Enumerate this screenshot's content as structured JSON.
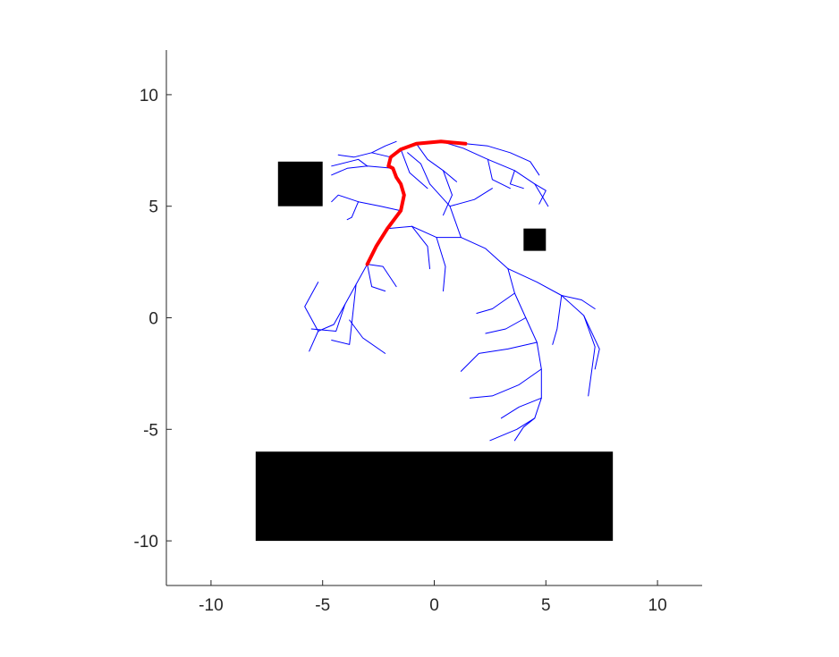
{
  "chart_data": {
    "type": "line",
    "title": "",
    "xlabel": "",
    "ylabel": "",
    "xlim": [
      -12,
      12
    ],
    "ylim": [
      -12,
      12
    ],
    "grid": false,
    "x_ticks": [
      "-10",
      "-5",
      "0",
      "5",
      "10"
    ],
    "y_ticks": [
      "10",
      "5",
      "0",
      "-5",
      "-10"
    ],
    "colors": {
      "tree": "#0000ff",
      "path": "#ff0000",
      "obstacle": "#000000",
      "axis": "#262626"
    },
    "obstacles": [
      {
        "x": [
          -7,
          -5
        ],
        "y": [
          5,
          7
        ]
      },
      {
        "x": [
          4,
          5
        ],
        "y": [
          3,
          4
        ]
      },
      {
        "x": [
          -8,
          8
        ],
        "y": [
          -10,
          -6
        ]
      }
    ],
    "path": {
      "x": [
        -3.0,
        -2.6,
        -2.1,
        -1.5,
        -1.35,
        -1.5,
        -1.7,
        -1.85,
        -2.05,
        -1.95,
        -1.5,
        -0.8,
        0.3,
        1.4
      ],
      "y": [
        2.4,
        3.2,
        4.0,
        4.8,
        5.5,
        6.0,
        6.3,
        6.7,
        6.8,
        7.2,
        7.55,
        7.8,
        7.9,
        7.8
      ]
    },
    "tree_branches": [
      {
        "x": [
          -3.0,
          -2.6,
          -2.1,
          -1.5,
          -1.35,
          -1.5,
          -1.7,
          -1.85,
          -2.05,
          -1.95,
          -1.5,
          -0.8,
          0.3,
          1.4
        ],
        "y": [
          2.4,
          3.2,
          4.0,
          4.8,
          5.5,
          6.0,
          6.3,
          6.7,
          6.8,
          7.2,
          7.55,
          7.8,
          7.9,
          7.8
        ]
      },
      {
        "x": [
          -3.0,
          -3.5,
          -4.0,
          -4.5,
          -5.2,
          -5.6
        ],
        "y": [
          2.4,
          1.5,
          0.6,
          -0.3,
          -0.6,
          -1.5
        ]
      },
      {
        "x": [
          -4.0,
          -4.4,
          -5.5
        ],
        "y": [
          0.6,
          -0.6,
          -0.5
        ]
      },
      {
        "x": [
          -3.5,
          -3.8,
          -4.6
        ],
        "y": [
          1.5,
          -1.2,
          -1.0
        ]
      },
      {
        "x": [
          -3.8,
          -3.2,
          -2.2
        ],
        "y": [
          -0.1,
          -0.9,
          -1.6
        ]
      },
      {
        "x": [
          -3.0,
          -2.8,
          -2.2
        ],
        "y": [
          2.4,
          1.4,
          1.2
        ]
      },
      {
        "x": [
          -5.2,
          -5.8,
          -5.2
        ],
        "y": [
          -0.6,
          0.5,
          1.6
        ]
      },
      {
        "x": [
          -3.0,
          -2.3,
          -1.7
        ],
        "y": [
          2.4,
          2.3,
          1.4
        ]
      },
      {
        "x": [
          -2.1,
          -1.0,
          0.1,
          1.2,
          2.3,
          3.3
        ],
        "y": [
          4.0,
          4.1,
          3.6,
          3.6,
          3.1,
          2.2
        ]
      },
      {
        "x": [
          0.1,
          0.5,
          0.4
        ],
        "y": [
          3.6,
          2.3,
          1.2
        ]
      },
      {
        "x": [
          -1.0,
          -0.3,
          -0.2
        ],
        "y": [
          4.1,
          3.2,
          2.2
        ]
      },
      {
        "x": [
          3.3,
          3.6,
          4.1,
          4.6,
          4.8,
          4.8,
          4.5,
          3.7,
          2.5
        ],
        "y": [
          2.2,
          1.1,
          0.0,
          -1.1,
          -2.3,
          -3.6,
          -4.5,
          -5.0,
          -5.5
        ]
      },
      {
        "x": [
          3.6,
          2.6,
          1.9
        ],
        "y": [
          1.1,
          0.4,
          0.2
        ]
      },
      {
        "x": [
          4.1,
          3.2,
          2.3
        ],
        "y": [
          0.0,
          -0.5,
          -0.7
        ]
      },
      {
        "x": [
          4.6,
          3.3,
          2.0,
          1.2
        ],
        "y": [
          -1.1,
          -1.4,
          -1.6,
          -2.4
        ]
      },
      {
        "x": [
          4.8,
          3.8,
          2.6,
          1.6
        ],
        "y": [
          -2.3,
          -3.0,
          -3.5,
          -3.6
        ]
      },
      {
        "x": [
          4.8,
          3.8,
          3.0
        ],
        "y": [
          -3.6,
          -4.0,
          -4.5
        ]
      },
      {
        "x": [
          4.5,
          4.0,
          3.6
        ],
        "y": [
          -4.5,
          -4.9,
          -5.5
        ]
      },
      {
        "x": [
          3.3,
          4.6,
          5.7,
          6.7,
          7.2,
          6.9
        ],
        "y": [
          2.2,
          1.6,
          1.0,
          0.1,
          -1.3,
          -3.5
        ]
      },
      {
        "x": [
          5.7,
          5.5,
          5.3
        ],
        "y": [
          1.0,
          -0.5,
          -1.2
        ]
      },
      {
        "x": [
          6.7,
          7.4,
          7.2
        ],
        "y": [
          0.1,
          -1.4,
          -2.3
        ]
      },
      {
        "x": [
          5.7,
          6.6,
          7.2
        ],
        "y": [
          1.0,
          0.8,
          0.4
        ]
      },
      {
        "x": [
          1.2,
          0.7,
          -0.2
        ],
        "y": [
          3.6,
          5.0,
          6.0
        ]
      },
      {
        "x": [
          0.7,
          1.8,
          2.6
        ],
        "y": [
          5.0,
          5.3,
          5.8
        ]
      },
      {
        "x": [
          -0.2,
          -0.6,
          -1.2
        ],
        "y": [
          6.0,
          6.9,
          7.4
        ]
      },
      {
        "x": [
          -1.5,
          -2.4,
          -3.4,
          -4.3,
          -4.6
        ],
        "y": [
          4.8,
          5.0,
          5.2,
          5.5,
          5.2
        ]
      },
      {
        "x": [
          -3.4,
          -3.7,
          -3.9
        ],
        "y": [
          5.2,
          4.5,
          4.4
        ]
      },
      {
        "x": [
          -1.85,
          -3.0,
          -3.9,
          -4.6
        ],
        "y": [
          6.7,
          6.8,
          6.7,
          6.4
        ]
      },
      {
        "x": [
          -3.0,
          -3.4,
          -4.6
        ],
        "y": [
          6.8,
          7.1,
          6.8
        ]
      },
      {
        "x": [
          -1.95,
          -2.8,
          -3.6,
          -4.3
        ],
        "y": [
          7.2,
          7.4,
          7.2,
          7.3
        ]
      },
      {
        "x": [
          -2.8,
          -2.2,
          -1.7
        ],
        "y": [
          7.4,
          7.7,
          7.9
        ]
      },
      {
        "x": [
          -1.5,
          -1.1,
          -0.3
        ],
        "y": [
          7.55,
          6.5,
          5.8
        ]
      },
      {
        "x": [
          0.3,
          1.3,
          2.4,
          3.6,
          4.5,
          5.1
        ],
        "y": [
          7.9,
          7.6,
          7.1,
          6.6,
          6.0,
          5.0
        ]
      },
      {
        "x": [
          2.4,
          2.6,
          3.4
        ],
        "y": [
          7.1,
          6.2,
          5.8
        ]
      },
      {
        "x": [
          1.4,
          2.4,
          3.4,
          4.3,
          4.7
        ],
        "y": [
          7.8,
          7.7,
          7.4,
          7.0,
          6.4
        ]
      },
      {
        "x": [
          3.6,
          3.4,
          4.0
        ],
        "y": [
          6.6,
          6.0,
          5.8
        ]
      },
      {
        "x": [
          4.5,
          5.0,
          4.7
        ],
        "y": [
          6.0,
          5.7,
          5.1
        ]
      },
      {
        "x": [
          -0.8,
          -0.3,
          0.4,
          1.0
        ],
        "y": [
          7.8,
          7.1,
          6.6,
          6.1
        ]
      },
      {
        "x": [
          0.4,
          0.8,
          0.4
        ],
        "y": [
          6.6,
          5.5,
          4.6
        ]
      }
    ]
  }
}
